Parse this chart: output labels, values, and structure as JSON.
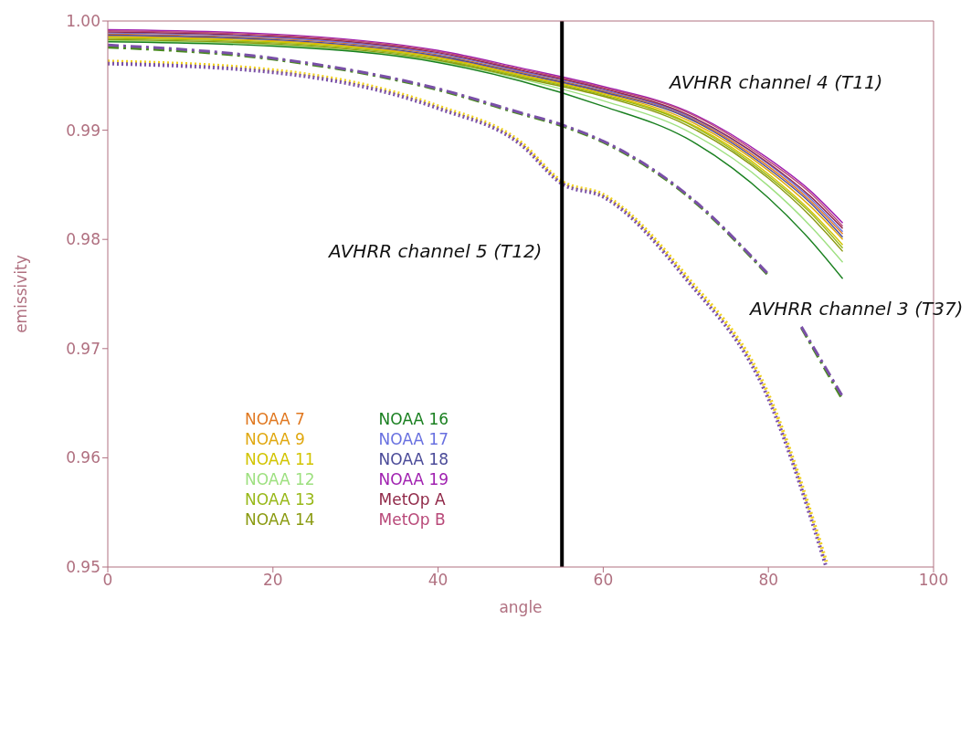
{
  "chart_data": {
    "type": "line",
    "xlabel": "angle",
    "ylabel": "emissivity",
    "xlim": [
      0,
      100
    ],
    "xticks": [
      0,
      20,
      40,
      60,
      80,
      100
    ],
    "ylim": [
      0.95,
      1.0
    ],
    "yticks": [
      {
        "value": 0.95,
        "label": "0.95"
      },
      {
        "value": 0.96,
        "label": "0.96"
      },
      {
        "value": 0.97,
        "label": "0.97"
      },
      {
        "value": 0.98,
        "label": "0.98"
      },
      {
        "value": 0.99,
        "label": "0.99"
      },
      {
        "value": 1.0,
        "label": "1.00"
      }
    ],
    "legend": "left",
    "ref_lines": [
      {
        "axis": "x",
        "value": 55,
        "color": "#000000"
      }
    ],
    "annotations": [
      "AVHRR channel 4 (T11)",
      "AVHRR channel 5 (T12)",
      "AVHRR channel 3 (T37)"
    ],
    "series": [
      {
        "name": "NOAA 7",
        "color": "#e07820",
        "line_style": "solid",
        "x": [
          0,
          20,
          40,
          50,
          60,
          70,
          80,
          85,
          89
        ],
        "values": [
          0.9988,
          0.9984,
          0.9969,
          0.9953,
          0.9936,
          0.9913,
          0.9867,
          0.9836,
          0.9805
        ]
      },
      {
        "name": "NOAA 9",
        "color": "#e0a810",
        "line_style": "solid",
        "x": [
          0,
          20,
          40,
          50,
          60,
          70,
          80,
          85,
          89
        ],
        "values": [
          0.9986,
          0.9982,
          0.9967,
          0.9951,
          0.9934,
          0.991,
          0.9863,
          0.9831,
          0.98
        ]
      },
      {
        "name": "NOAA 11",
        "color": "#d2c400",
        "line_style": "solid",
        "x": [
          0,
          20,
          40,
          50,
          60,
          70,
          80,
          85,
          89
        ],
        "values": [
          0.9985,
          0.9981,
          0.9966,
          0.995,
          0.9933,
          0.9908,
          0.986,
          0.9827,
          0.9795
        ]
      },
      {
        "name": "NOAA 12",
        "color": "#9ee080",
        "line_style": "solid",
        "x": [
          0,
          20,
          40,
          50,
          60,
          70,
          80,
          85,
          89
        ],
        "values": [
          0.9982,
          0.9978,
          0.9963,
          0.9947,
          0.9927,
          0.99,
          0.9849,
          0.9813,
          0.9779
        ]
      },
      {
        "name": "NOAA 13",
        "color": "#98b818",
        "line_style": "solid",
        "x": [
          0,
          20,
          40,
          50,
          60,
          70,
          80,
          85,
          89
        ],
        "values": [
          0.9984,
          0.998,
          0.9965,
          0.9949,
          0.9932,
          0.9907,
          0.9858,
          0.9825,
          0.9792
        ]
      },
      {
        "name": "NOAA 14",
        "color": "#8a9a10",
        "line_style": "solid",
        "x": [
          0,
          20,
          40,
          50,
          60,
          70,
          80,
          85,
          89
        ],
        "values": [
          0.9983,
          0.9979,
          0.9964,
          0.9948,
          0.9931,
          0.9905,
          0.9856,
          0.9822,
          0.9789
        ]
      },
      {
        "name": "NOAA 16",
        "color": "#1a8020",
        "line_style": "solid",
        "x": [
          0,
          20,
          40,
          50,
          60,
          70,
          80,
          85,
          89
        ],
        "values": [
          0.9981,
          0.9977,
          0.9962,
          0.9945,
          0.9922,
          0.9893,
          0.9838,
          0.98,
          0.9764
        ]
      },
      {
        "name": "NOAA 17",
        "color": "#6870e0",
        "line_style": "solid",
        "x": [
          0,
          20,
          40,
          50,
          60,
          70,
          80,
          85,
          89
        ],
        "values": [
          0.9989,
          0.9985,
          0.997,
          0.9954,
          0.9937,
          0.9914,
          0.9869,
          0.9838,
          0.9807
        ]
      },
      {
        "name": "NOAA 18",
        "color": "#4a4a98",
        "line_style": "solid",
        "x": [
          0,
          20,
          40,
          50,
          60,
          70,
          80,
          85,
          89
        ],
        "values": [
          0.9987,
          0.9983,
          0.9968,
          0.9952,
          0.9935,
          0.9912,
          0.9865,
          0.9834,
          0.9802
        ]
      },
      {
        "name": "NOAA 19",
        "color": "#a020b0",
        "line_style": "solid",
        "x": [
          0,
          20,
          40,
          50,
          60,
          70,
          80,
          85,
          89
        ],
        "values": [
          0.9992,
          0.9988,
          0.9973,
          0.9957,
          0.994,
          0.9918,
          0.9874,
          0.9845,
          0.9815
        ]
      },
      {
        "name": "MetOp A",
        "color": "#902848",
        "line_style": "solid",
        "x": [
          0,
          20,
          40,
          50,
          60,
          70,
          80,
          85,
          89
        ],
        "values": [
          0.999,
          0.9986,
          0.9971,
          0.9955,
          0.9938,
          0.9915,
          0.987,
          0.984,
          0.981
        ]
      },
      {
        "name": "MetOp B",
        "color": "#b84878",
        "line_style": "solid",
        "x": [
          0,
          20,
          40,
          50,
          60,
          70,
          80,
          85,
          89
        ],
        "values": [
          0.9991,
          0.9987,
          0.9972,
          0.9956,
          0.9939,
          0.9917,
          0.9872,
          0.9843,
          0.9812
        ]
      },
      {
        "color": "#4a8a20",
        "line_style": "dashed",
        "x": [
          0,
          20,
          40,
          50,
          55,
          60,
          70,
          80,
          82,
          84,
          89
        ],
        "values": [
          0.9976,
          0.9965,
          0.9937,
          0.9915,
          0.9904,
          0.9889,
          0.9841,
          0.9767,
          null,
          0.9719,
          0.9653
        ]
      },
      {
        "color": "#7a50a8",
        "line_style": "dashed",
        "x": [
          0,
          20,
          40,
          50,
          55,
          60,
          70,
          80,
          82,
          84,
          89
        ],
        "values": [
          0.9978,
          0.9966,
          0.9938,
          0.9916,
          0.9905,
          0.989,
          0.9842,
          0.9768,
          null,
          0.972,
          0.9656
        ]
      },
      {
        "color": "#f0d020",
        "line_style": "dotted",
        "x": [
          0,
          20,
          40,
          50,
          55,
          60,
          70,
          80,
          87
        ],
        "values": [
          0.9963,
          0.9955,
          0.9922,
          0.9889,
          0.9853,
          0.9841,
          0.9767,
          0.9658,
          0.9505
        ]
      },
      {
        "color": "#7a50a8",
        "line_style": "dotted",
        "x": [
          0,
          20,
          40,
          50,
          55,
          60,
          70,
          80,
          87
        ],
        "values": [
          0.9961,
          0.9953,
          0.992,
          0.9887,
          0.9851,
          0.9839,
          0.9764,
          0.9654,
          0.95
        ]
      }
    ]
  }
}
